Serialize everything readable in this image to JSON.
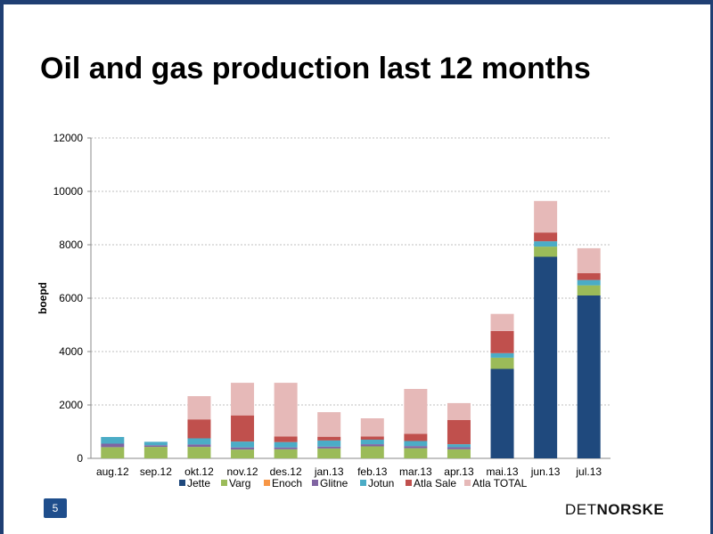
{
  "slide": {
    "title": "Oil and gas production last 12 months",
    "page_number": "5",
    "logo_light": "DET",
    "logo_bold": "NORSKE"
  },
  "chart_data": {
    "type": "bar",
    "stacked": true,
    "ylabel": "boepd",
    "ylim": [
      0,
      12000
    ],
    "yticks": [
      0,
      2000,
      4000,
      6000,
      8000,
      10000,
      12000
    ],
    "grid": true,
    "legend_position": "bottom",
    "categories": [
      "aug.12",
      "sep.12",
      "okt.12",
      "nov.12",
      "des.12",
      "jan.13",
      "feb.13",
      "mar.13",
      "apr.13",
      "mai.13",
      "jun.13",
      "jul.13"
    ],
    "series": [
      {
        "name": "Jette",
        "color": "#1f497d",
        "values": [
          0,
          0,
          0,
          0,
          0,
          0,
          0,
          0,
          0,
          3350,
          7550,
          6100
        ]
      },
      {
        "name": "Varg",
        "color": "#9bbb59",
        "values": [
          420,
          430,
          430,
          330,
          340,
          370,
          450,
          380,
          340,
          420,
          380,
          380
        ]
      },
      {
        "name": "Enoch",
        "color": "#f79646",
        "values": [
          0,
          0,
          0,
          0,
          0,
          0,
          0,
          0,
          0,
          0,
          0,
          0
        ]
      },
      {
        "name": "Glitne",
        "color": "#8064a2",
        "values": [
          130,
          60,
          90,
          80,
          70,
          70,
          80,
          80,
          80,
          0,
          0,
          0
        ]
      },
      {
        "name": "Jotun",
        "color": "#4bacc6",
        "values": [
          250,
          130,
          230,
          220,
          200,
          230,
          170,
          190,
          110,
          170,
          200,
          200
        ]
      },
      {
        "name": "Atla Sale",
        "color": "#c0504d",
        "values": [
          0,
          0,
          710,
          980,
          210,
          140,
          120,
          270,
          910,
          830,
          330,
          260
        ]
      },
      {
        "name": "Atla TOTAL",
        "color": "#e6b9b8",
        "values": [
          0,
          0,
          870,
          1220,
          2010,
          920,
          680,
          1680,
          630,
          640,
          1180,
          930
        ]
      }
    ]
  }
}
